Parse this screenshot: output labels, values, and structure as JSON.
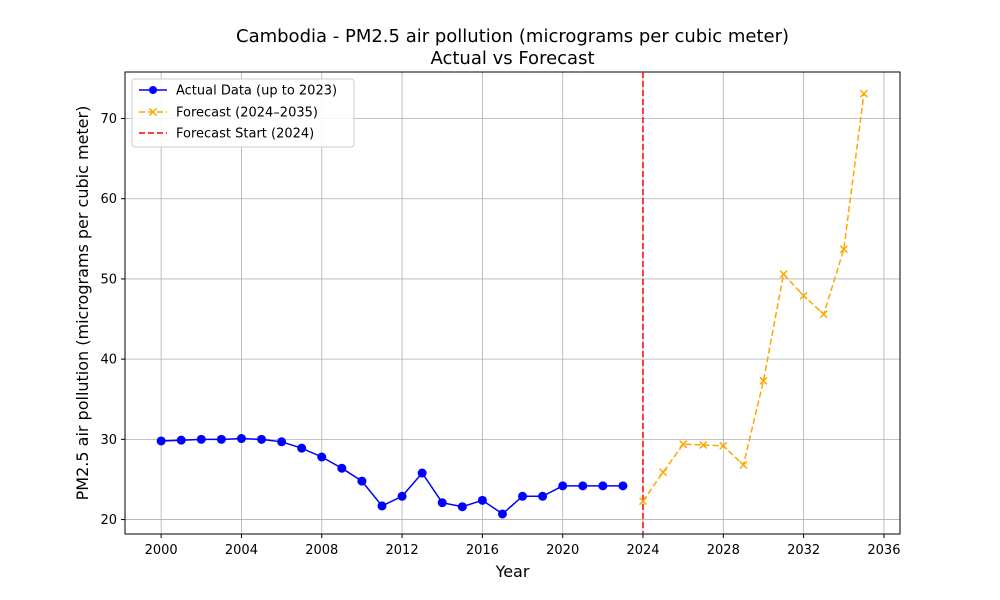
{
  "chart_data": {
    "type": "line",
    "title": "Cambodia - PM2.5 air pollution (micrograms per cubic meter)",
    "subtitle": "Actual vs Forecast",
    "xlabel": "Year",
    "ylabel": "PM2.5 air pollution (micrograms per cubic meter)",
    "xlim": [
      1998.2,
      2036.8
    ],
    "ylim": [
      18.2,
      75.8
    ],
    "x_ticks": [
      2000,
      2004,
      2008,
      2012,
      2016,
      2020,
      2024,
      2028,
      2032,
      2036
    ],
    "y_ticks": [
      20,
      30,
      40,
      50,
      60,
      70
    ],
    "grid": true,
    "legend_position": "top-left",
    "series": [
      {
        "name": "Actual Data (up to 2023)",
        "color": "#0000ff",
        "style": "solid",
        "marker": "circle",
        "x": [
          2000,
          2001,
          2002,
          2003,
          2004,
          2005,
          2006,
          2007,
          2008,
          2009,
          2010,
          2011,
          2012,
          2013,
          2014,
          2015,
          2016,
          2017,
          2018,
          2019,
          2020,
          2021,
          2022,
          2023
        ],
        "y": [
          29.8,
          29.9,
          30.0,
          30.0,
          30.1,
          30.0,
          29.7,
          28.9,
          27.8,
          26.4,
          24.8,
          21.7,
          22.9,
          25.8,
          22.1,
          21.6,
          22.4,
          20.7,
          22.9,
          22.9,
          24.2,
          24.2,
          24.2,
          24.2
        ]
      },
      {
        "name": "Forecast (2024–2035)",
        "color": "#ffa500",
        "style": "dashed",
        "marker": "x",
        "x": [
          2024,
          2025,
          2026,
          2027,
          2028,
          2029,
          2030,
          2031,
          2032,
          2033,
          2034,
          2035
        ],
        "y": [
          22.3,
          25.9,
          29.4,
          29.3,
          29.2,
          26.8,
          37.3,
          50.6,
          47.9,
          45.6,
          53.7,
          73.1
        ]
      }
    ],
    "vlines": [
      {
        "name": "Forecast Start (2024)",
        "x": 2024,
        "color": "#ff0000",
        "style": "dashed"
      }
    ]
  }
}
